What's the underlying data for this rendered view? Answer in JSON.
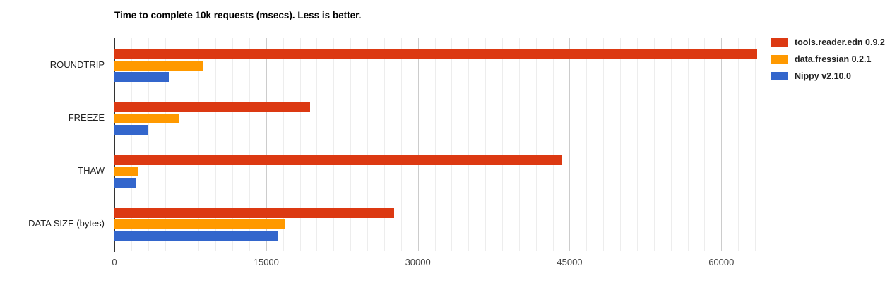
{
  "chart_data": {
    "type": "bar",
    "orientation": "horizontal",
    "title": "Time to complete 10k requests (msecs). Less is better.",
    "categories": [
      "ROUNDTRIP",
      "FREEZE",
      "THAW",
      "DATA SIZE (bytes)"
    ],
    "series": [
      {
        "name": "tools.reader.edn 0.9.2",
        "color": "#dc3912",
        "values": [
          63540,
          19330,
          44210,
          27660
        ]
      },
      {
        "name": "data.fressian 0.2.1",
        "color": "#ff9900",
        "values": [
          8800,
          6420,
          2380,
          16900
        ]
      },
      {
        "name": "Nippy v2.10.0",
        "color": "#3366cc",
        "values": [
          5380,
          3350,
          2080,
          16130
        ]
      }
    ],
    "xlim": [
      0,
      63540
    ],
    "x_ticks": [
      0,
      15000,
      30000,
      45000,
      60000
    ],
    "x_tick_labels": [
      "0",
      "15000",
      "30000",
      "45000",
      "60000"
    ],
    "minor_gridline_step": 1666.67,
    "minors_per_major": 9,
    "grid": true,
    "legend_position": "right",
    "colors": {
      "minor_gridline": "#ededed",
      "major_gridline": "#cccccc",
      "baseline": "#333333",
      "title_text": "#000000",
      "category_text": "#222222",
      "tick_text": "#444444",
      "legend_text": "#222222",
      "background": "#ffffff"
    }
  }
}
